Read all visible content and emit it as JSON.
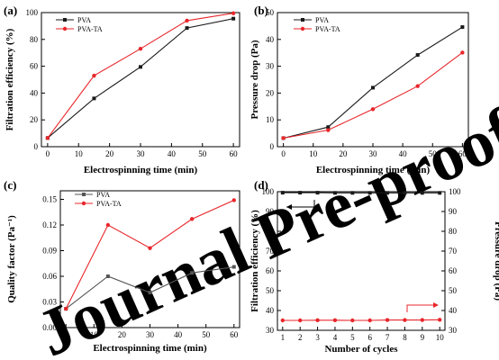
{
  "watermark": "Journal Pre-proofs",
  "colors": {
    "pva": "#1a1a1a",
    "pva_ta": "#e8262b",
    "pva_c": "#555555",
    "watermark": "#e9e9e9"
  },
  "chart_data": [
    {
      "id": "a",
      "panel_label": "(a)",
      "type": "line",
      "xlabel": "Electrospinning time (min)",
      "ylabel": "Filtration efficiency (%)",
      "xlim": [
        -2,
        62
      ],
      "ylim": [
        0,
        100
      ],
      "xticks": [
        "0",
        "10",
        "20",
        "30",
        "40",
        "50",
        "60"
      ],
      "yticks": [
        "0",
        "20",
        "40",
        "60",
        "80",
        "100"
      ],
      "legend_position": "top-left",
      "series": [
        {
          "name": "PVA",
          "marker": "square",
          "x": [
            0,
            15,
            30,
            45,
            60
          ],
          "y": [
            6.5,
            36,
            59.5,
            88.5,
            95.5
          ]
        },
        {
          "name": "PVA-TA",
          "marker": "circle",
          "x": [
            0,
            15,
            30,
            45,
            60
          ],
          "y": [
            6.5,
            53,
            73,
            94,
            99.5
          ]
        }
      ]
    },
    {
      "id": "b",
      "panel_label": "(b)",
      "type": "line",
      "xlabel": "Electrospinning time (min)",
      "ylabel": "Pressure drop (Pa)",
      "xlim": [
        -2,
        62
      ],
      "ylim": [
        0,
        50
      ],
      "xticks": [
        "0",
        "10",
        "20",
        "30",
        "40",
        "50",
        "60"
      ],
      "yticks": [
        "0",
        "10",
        "20",
        "30",
        "40",
        "50"
      ],
      "legend_position": "top-left",
      "series": [
        {
          "name": "PVA",
          "marker": "square",
          "x": [
            0,
            15,
            30,
            45,
            60
          ],
          "y": [
            3.2,
            7.3,
            22,
            34.2,
            44.6
          ]
        },
        {
          "name": "PVA-TA",
          "marker": "circle",
          "x": [
            0,
            15,
            30,
            45,
            60
          ],
          "y": [
            3.2,
            6.2,
            14,
            22.6,
            35.1
          ]
        }
      ]
    },
    {
      "id": "c",
      "panel_label": "(c)",
      "type": "line",
      "xlabel": "Electrospinning time (min)",
      "ylabel": "Quality factor (Pa⁻¹)",
      "xlim": [
        -2,
        62
      ],
      "ylim": [
        0,
        0.16
      ],
      "xticks": [
        "0",
        "10",
        "20",
        "30",
        "40",
        "50",
        "60"
      ],
      "yticks": [
        "0.00",
        "0.03",
        "0.06",
        "0.09",
        "0.12",
        "0.15"
      ],
      "legend_position": "top-left",
      "series": [
        {
          "name": "PVA",
          "marker": "square",
          "x": [
            0,
            15,
            30,
            45,
            60
          ],
          "y": [
            0.022,
            0.06,
            0.041,
            0.064,
            0.071
          ]
        },
        {
          "name": "PVA-TA",
          "marker": "circle",
          "x": [
            0,
            15,
            30,
            45,
            60
          ],
          "y": [
            0.022,
            0.12,
            0.093,
            0.127,
            0.149
          ]
        }
      ]
    },
    {
      "id": "d",
      "panel_label": "(d)",
      "type": "line",
      "xlabel": "Number of cycles",
      "ylabel": "Filtration efficiency (%)",
      "ylabel_right": "Pressure drop (Pa)",
      "xlim": [
        0.7,
        10.3
      ],
      "ylim": [
        30,
        100
      ],
      "ylim_right": [
        30,
        100
      ],
      "xticks": [
        "1",
        "2",
        "3",
        "4",
        "5",
        "6",
        "7",
        "8",
        "9",
        "10"
      ],
      "yticks": [
        "30",
        "40",
        "50",
        "60",
        "70",
        "80",
        "90",
        "100"
      ],
      "yticks_right": [
        "30",
        "40",
        "50",
        "60",
        "70",
        "80",
        "90",
        "100"
      ],
      "series": [
        {
          "axis": "left",
          "marker": "square",
          "x": [
            1,
            2,
            3,
            4,
            5,
            6,
            7,
            8,
            9,
            10
          ],
          "y": [
            99.5,
            99.5,
            99.5,
            99.4,
            99.4,
            99.4,
            99.4,
            99.4,
            99.4,
            99.4
          ]
        },
        {
          "axis": "right",
          "marker": "circle",
          "x": [
            1,
            2,
            3,
            4,
            5,
            6,
            7,
            8,
            9,
            10
          ],
          "y": [
            35.0,
            35.0,
            35.1,
            35.1,
            35.0,
            35.0,
            35.2,
            35.2,
            35.2,
            35.3
          ]
        }
      ]
    }
  ]
}
